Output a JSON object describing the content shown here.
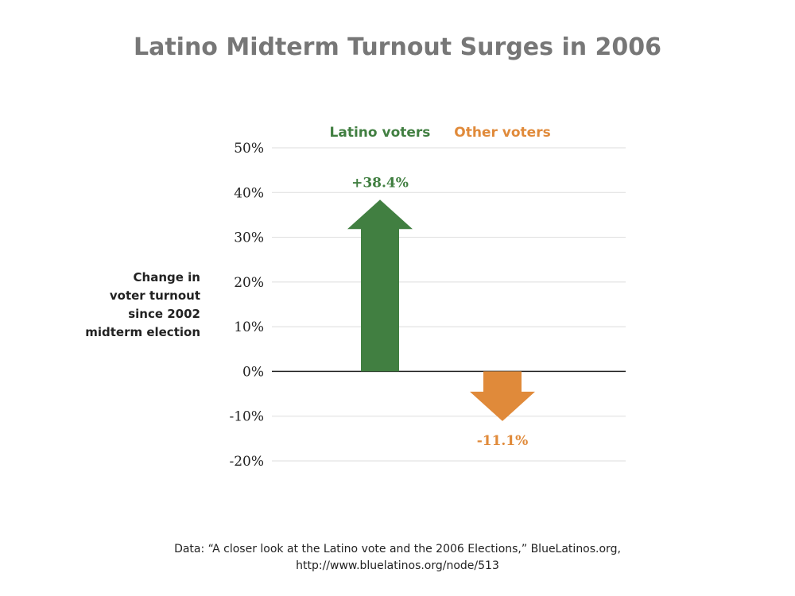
{
  "title": "Latino Midterm Turnout Surges in 2006",
  "ylabel_lines": [
    "Change in",
    "voter turnout",
    "since 2002",
    "midterm election"
  ],
  "footer_lines": [
    "Data: “A closer look at the Latino vote and the 2006 Elections,” BlueLatinos.org,",
    "http://www.bluelatinos.org/node/513"
  ],
  "colors": {
    "latino": "#417f41",
    "other": "#e08a3a",
    "title": "#777777",
    "grid": "#dddddd",
    "axis": "#222222"
  },
  "chart_data": {
    "type": "bar",
    "title": "Latino Midterm Turnout Surges in 2006",
    "xlabel": "",
    "ylabel": "Change in voter turnout since 2002 midterm election",
    "categories": [
      "Latino voters",
      "Other voters"
    ],
    "values": [
      38.4,
      -11.1
    ],
    "data_labels": [
      "+38.4%",
      "-11.1%"
    ],
    "ylim": [
      -20,
      50
    ],
    "yticks": [
      50,
      40,
      30,
      20,
      10,
      0,
      -10,
      -20
    ],
    "ytick_labels": [
      "50%",
      "40%",
      "30%",
      "20%",
      "10%",
      "0%",
      "-10%",
      "-20%"
    ],
    "grid": true,
    "legend": "none"
  }
}
